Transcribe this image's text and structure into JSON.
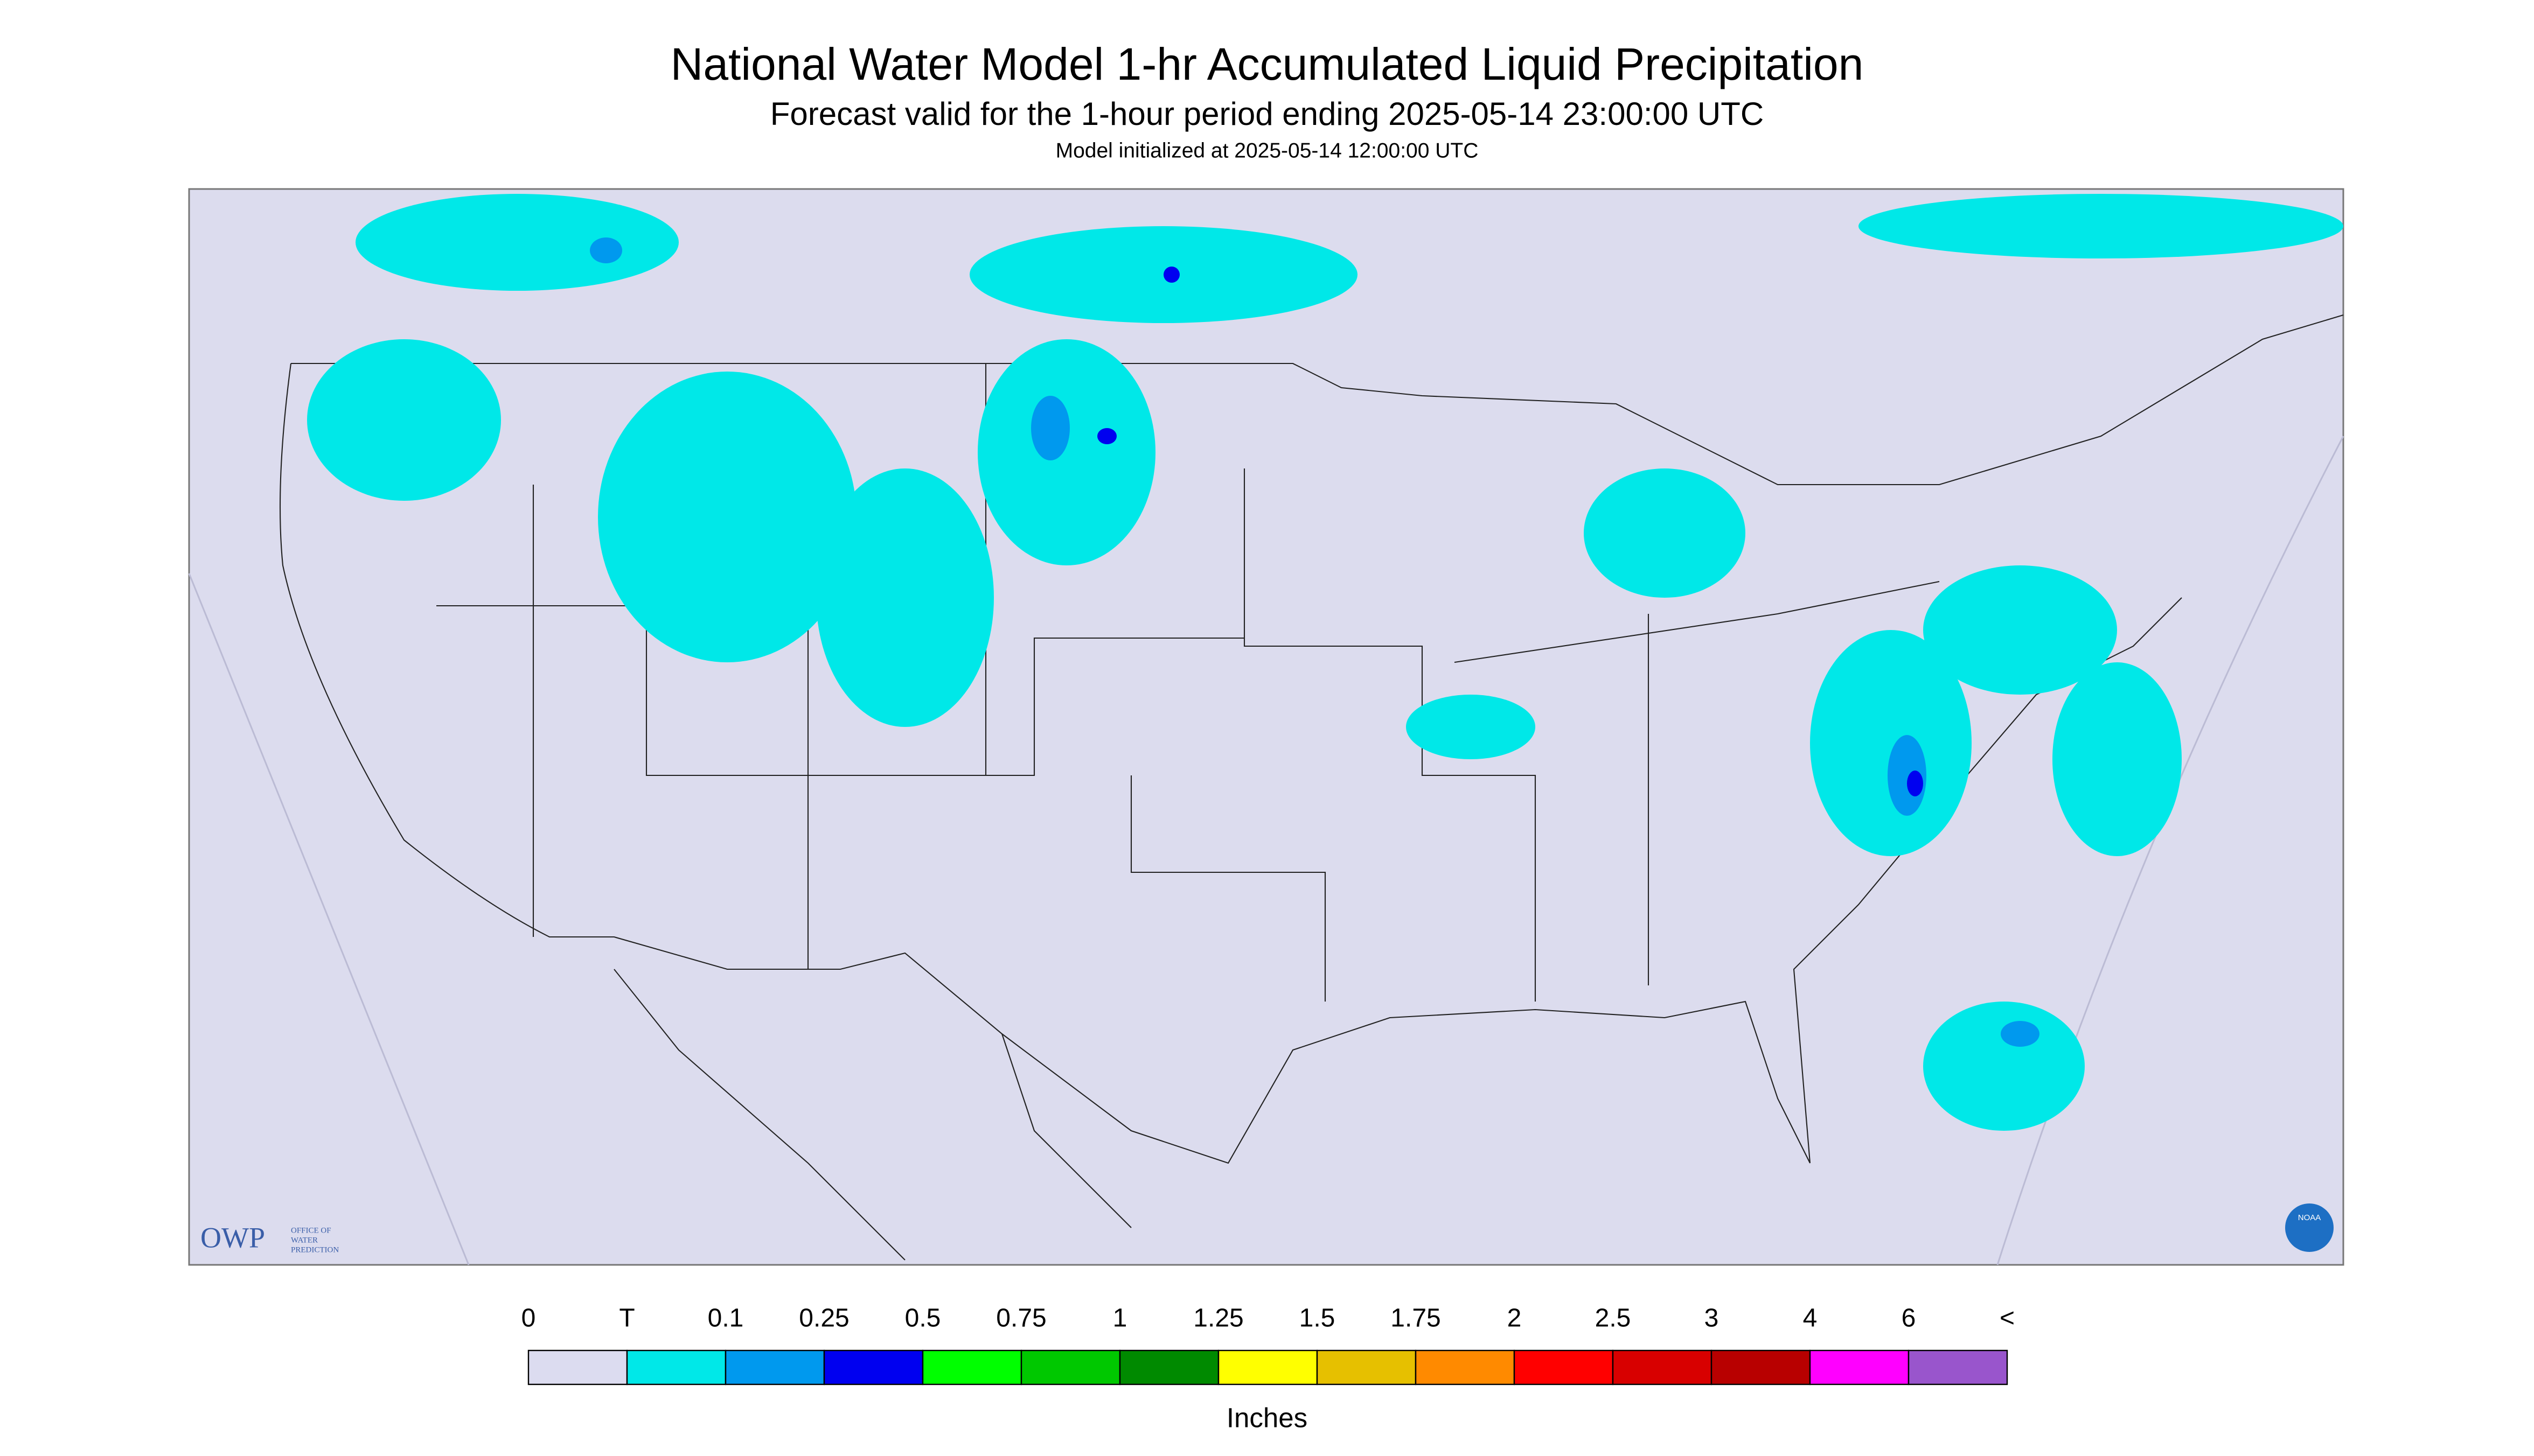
{
  "header": {
    "title": "National Water Model 1-hr Accumulated Liquid Precipitation",
    "subtitle": "Forecast valid for the 1-hour period ending 2025-05-14 23:00:00 UTC",
    "init": "Model initialized at 2025-05-14 12:00:00 UTC"
  },
  "logo": {
    "name": "OWP",
    "text": [
      "OFFICE OF",
      "WATER",
      "PREDICTION"
    ],
    "badge": "NOAA"
  },
  "legend": {
    "labels": [
      "0",
      "T",
      "0.1",
      "0.25",
      "0.5",
      "0.75",
      "1",
      "1.25",
      "1.5",
      "1.75",
      "2",
      "2.5",
      "3",
      "4",
      "6",
      "<"
    ],
    "colors": [
      "#dcdcf0",
      "#00e8e8",
      "#0099ee",
      "#0000f0",
      "#00ff00",
      "#00c800",
      "#008a00",
      "#ffff00",
      "#e6c000",
      "#ff8a00",
      "#ff0000",
      "#d80000",
      "#b80000",
      "#ff00ff",
      "#9955cc"
    ],
    "unit": "Inches"
  }
}
